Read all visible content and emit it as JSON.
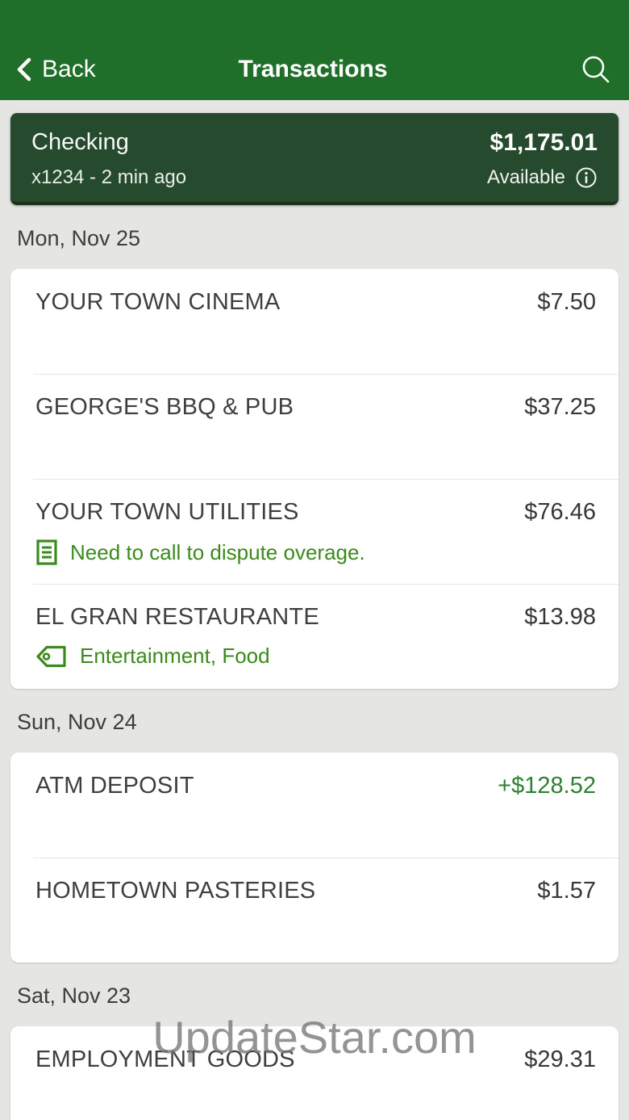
{
  "header": {
    "back_label": "Back",
    "title": "Transactions"
  },
  "account_card": {
    "name": "Checking",
    "subtitle": "x1234 - 2 min ago",
    "balance": "$1,175.01",
    "balance_label": "Available"
  },
  "colors": {
    "header_green": "#1f6e29",
    "account_card_green": "#264a2d",
    "annotation_green": "#3a8a1c",
    "credit_green": "#2e8132",
    "page_background": "#e5e5e3"
  },
  "sections": [
    {
      "date": "Mon, Nov 25",
      "transactions": [
        {
          "merchant": "YOUR TOWN CINEMA",
          "amount": "$7.50",
          "amount_type": "debit"
        },
        {
          "merchant": "GEORGE'S BBQ & PUB",
          "amount": "$37.25",
          "amount_type": "debit"
        },
        {
          "merchant": "YOUR TOWN UTILITIES",
          "amount": "$76.46",
          "amount_type": "debit",
          "annotation": "Need to call to dispute overage.",
          "annotation_icon": "note-icon"
        },
        {
          "merchant": "EL GRAN RESTAURANTE",
          "amount": "$13.98",
          "amount_type": "debit",
          "annotation": "Entertainment, Food",
          "annotation_icon": "tag-icon"
        }
      ]
    },
    {
      "date": "Sun, Nov 24",
      "transactions": [
        {
          "merchant": "ATM DEPOSIT",
          "amount": "+$128.52",
          "amount_type": "credit"
        },
        {
          "merchant": "HOMETOWN PASTERIES",
          "amount": "$1.57",
          "amount_type": "debit"
        }
      ]
    },
    {
      "date": "Sat, Nov 23",
      "transactions": [
        {
          "merchant": "EMPLOYMENT GOODS",
          "amount": "$29.31",
          "amount_type": "debit"
        }
      ]
    }
  ],
  "watermark": "UpdateStar.com"
}
